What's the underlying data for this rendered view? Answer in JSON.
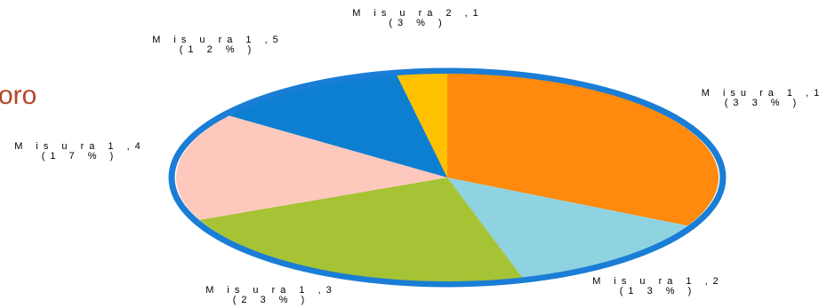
{
  "partial_title": "oro",
  "chart_data": {
    "type": "pie",
    "title": "",
    "slices": [
      {
        "name": "Misura 1,1",
        "label": "M isu ra  1 ,1",
        "pct_label": "(3 3 % )",
        "value": 33,
        "color": "#ff8a0d"
      },
      {
        "name": "Misura 1,2",
        "label": "M is u ra  1 ,2",
        "pct_label": "(1 3 % )",
        "value": 13,
        "color": "#8fd3e1"
      },
      {
        "name": "Misura 1,3",
        "label": "M is u ra  1 ,3",
        "pct_label": "(2 3 % )",
        "value": 23,
        "color": "#a5c334"
      },
      {
        "name": "Misura 1,4",
        "label": "M is u ra  1 ,4",
        "pct_label": "(1 7 % )",
        "value": 17,
        "color": "#ffc8bd"
      },
      {
        "name": "Misura 1,5",
        "label": "M is u ra  1 ,5",
        "pct_label": "(1 2 % )",
        "value": 12,
        "color": "#0c7fd1"
      },
      {
        "name": "Misura 2,1",
        "label": "M is u ra  2 ,1",
        "pct_label": "(3 % )",
        "value": 3,
        "color": "#ffc000"
      }
    ],
    "ring_color": "#1a7dd6",
    "legend": "none"
  }
}
